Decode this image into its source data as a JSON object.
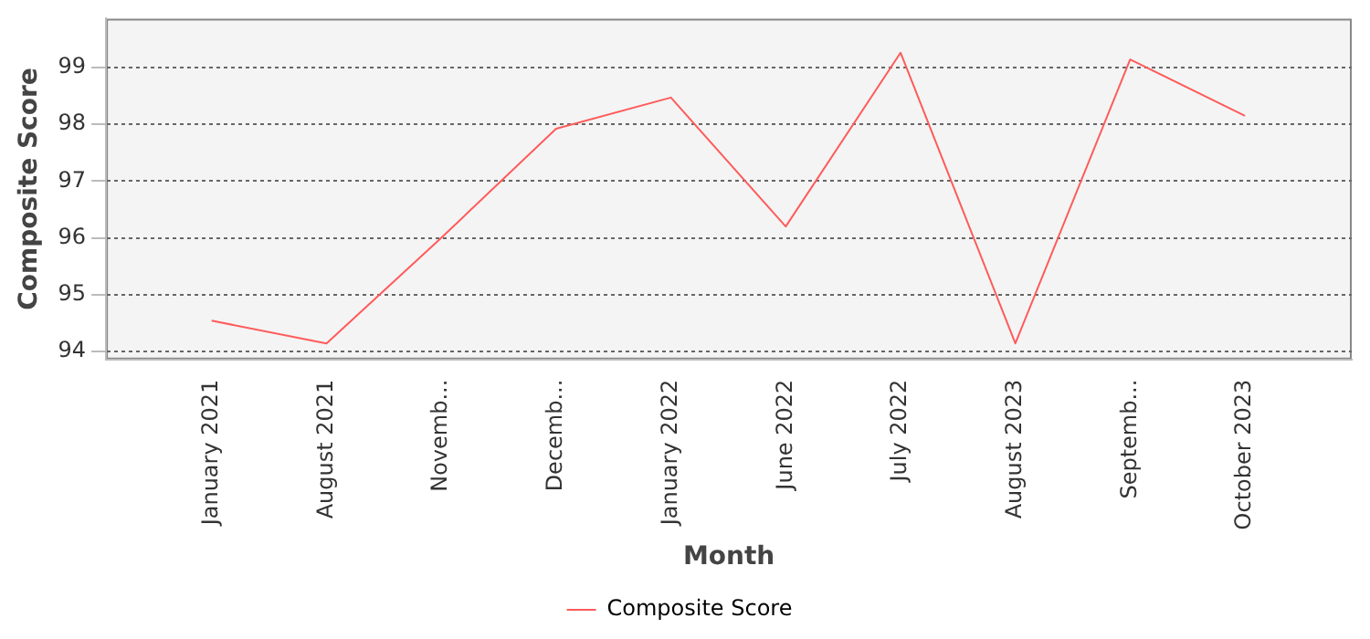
{
  "chart_data": {
    "type": "line",
    "xlabel": "Month",
    "ylabel": "Composite Score",
    "categories": [
      "January 2021",
      "August 2021",
      "Novemb...",
      "Decemb...",
      "January 2022",
      "June 2022",
      "July 2022",
      "August 2023",
      "Septemb...",
      "October 2023"
    ],
    "series": [
      {
        "name": "Composite Score",
        "color": "#ff5b5b",
        "values": [
          94.54,
          94.14,
          96.0,
          97.92,
          98.47,
          96.2,
          99.26,
          94.14,
          99.14,
          98.15
        ]
      }
    ],
    "ylim": [
      93.86,
      99.86
    ],
    "yticks": [
      94,
      95,
      96,
      97,
      98,
      99
    ],
    "grid": "y",
    "legend": "bottom",
    "marker": "none",
    "line_style": "solid"
  }
}
